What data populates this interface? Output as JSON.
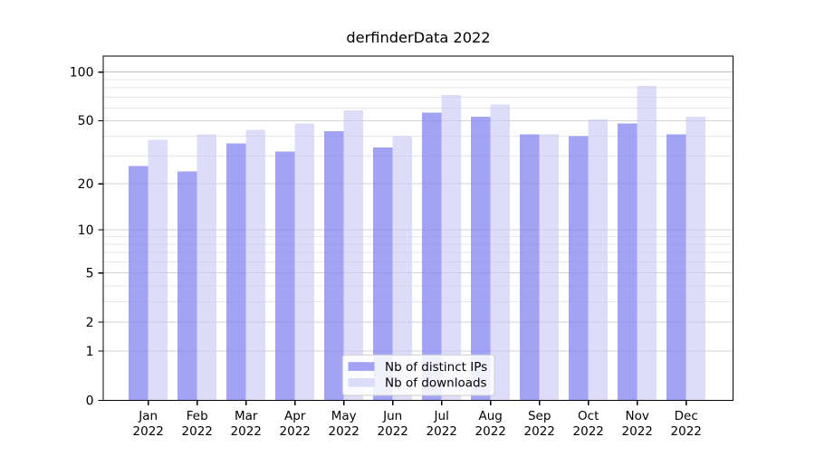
{
  "chart_data": {
    "type": "bar",
    "title": "derfinderData 2022",
    "categories": [
      "Jan",
      "Feb",
      "Mar",
      "Apr",
      "May",
      "Jun",
      "Jul",
      "Aug",
      "Sep",
      "Oct",
      "Nov",
      "Dec"
    ],
    "category_year": "2022",
    "series": [
      {
        "name": "Nb of distinct IPs",
        "color": "#8c8cf2",
        "fill_alpha": 0.8,
        "values": [
          26,
          24,
          36,
          32,
          43,
          34,
          56,
          53,
          41,
          40,
          48,
          41
        ]
      },
      {
        "name": "Nb of downloads",
        "color": "#c8c8f7",
        "fill_alpha": 0.62,
        "values": [
          38,
          41,
          44,
          48,
          58,
          40,
          72,
          63,
          41,
          51,
          82,
          53
        ]
      }
    ],
    "xlabel": "",
    "ylabel": "",
    "yscale": "log1p",
    "yticks_labeled": [
      0,
      1,
      2,
      5,
      10,
      20,
      50,
      100
    ],
    "ylim": [
      0,
      128
    ],
    "grid": "horizontal",
    "legend_position": "lower-center",
    "colors": {
      "grid_minor": "#e7e7e7",
      "grid_labeled": "#d2d2d2",
      "grid_top": "#bdbdbd",
      "axis": "#000000",
      "text": "#000000",
      "legend_border": "#cccccc"
    }
  }
}
